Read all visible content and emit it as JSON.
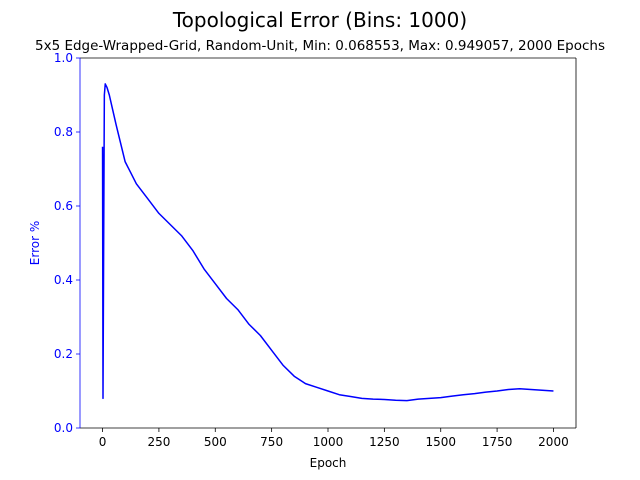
{
  "chart_data": {
    "type": "line",
    "title": "Topological Error (Bins: 1000)",
    "subtitle": "5x5 Edge-Wrapped-Grid, Random-Unit, Min: 0.068553, Max: 0.949057, 2000 Epochs",
    "xlabel": "Epoch",
    "ylabel": "Error %",
    "xlim": [
      -100,
      2100
    ],
    "ylim": [
      0.0,
      1.0
    ],
    "x_ticks": [
      0,
      250,
      500,
      750,
      1000,
      1250,
      1500,
      1750,
      2000
    ],
    "y_ticks": [
      0.0,
      0.2,
      0.4,
      0.6,
      0.8,
      1.0
    ],
    "x_tick_labels": [
      "0",
      "250",
      "500",
      "750",
      "1000",
      "1250",
      "1500",
      "1750",
      "2000"
    ],
    "y_tick_labels": [
      "0.0",
      "0.2",
      "0.4",
      "0.6",
      "0.8",
      "1.0"
    ],
    "grid": false,
    "line_color": "#0000ff",
    "y_axis_color": "#0000ff",
    "series": [
      {
        "x": [
          0,
          2,
          5,
          8,
          12,
          20,
          30,
          45,
          60,
          80,
          100,
          125,
          150,
          175,
          200,
          250,
          300,
          350,
          400,
          450,
          500,
          550,
          600,
          650,
          700,
          750,
          800,
          850,
          900,
          950,
          1000,
          1050,
          1100,
          1150,
          1200,
          1250,
          1300,
          1350,
          1400,
          1450,
          1500,
          1550,
          1600,
          1650,
          1700,
          1750,
          1800,
          1850,
          1900,
          1950,
          2000
        ],
        "y": [
          0.76,
          0.08,
          0.5,
          0.9,
          0.93,
          0.92,
          0.9,
          0.86,
          0.82,
          0.77,
          0.72,
          0.69,
          0.66,
          0.64,
          0.62,
          0.58,
          0.55,
          0.52,
          0.48,
          0.43,
          0.39,
          0.35,
          0.32,
          0.28,
          0.25,
          0.21,
          0.17,
          0.14,
          0.12,
          0.11,
          0.1,
          0.09,
          0.085,
          0.08,
          0.078,
          0.077,
          0.075,
          0.074,
          0.078,
          0.08,
          0.082,
          0.086,
          0.09,
          0.093,
          0.097,
          0.1,
          0.104,
          0.106,
          0.104,
          0.102,
          0.1
        ]
      }
    ]
  }
}
